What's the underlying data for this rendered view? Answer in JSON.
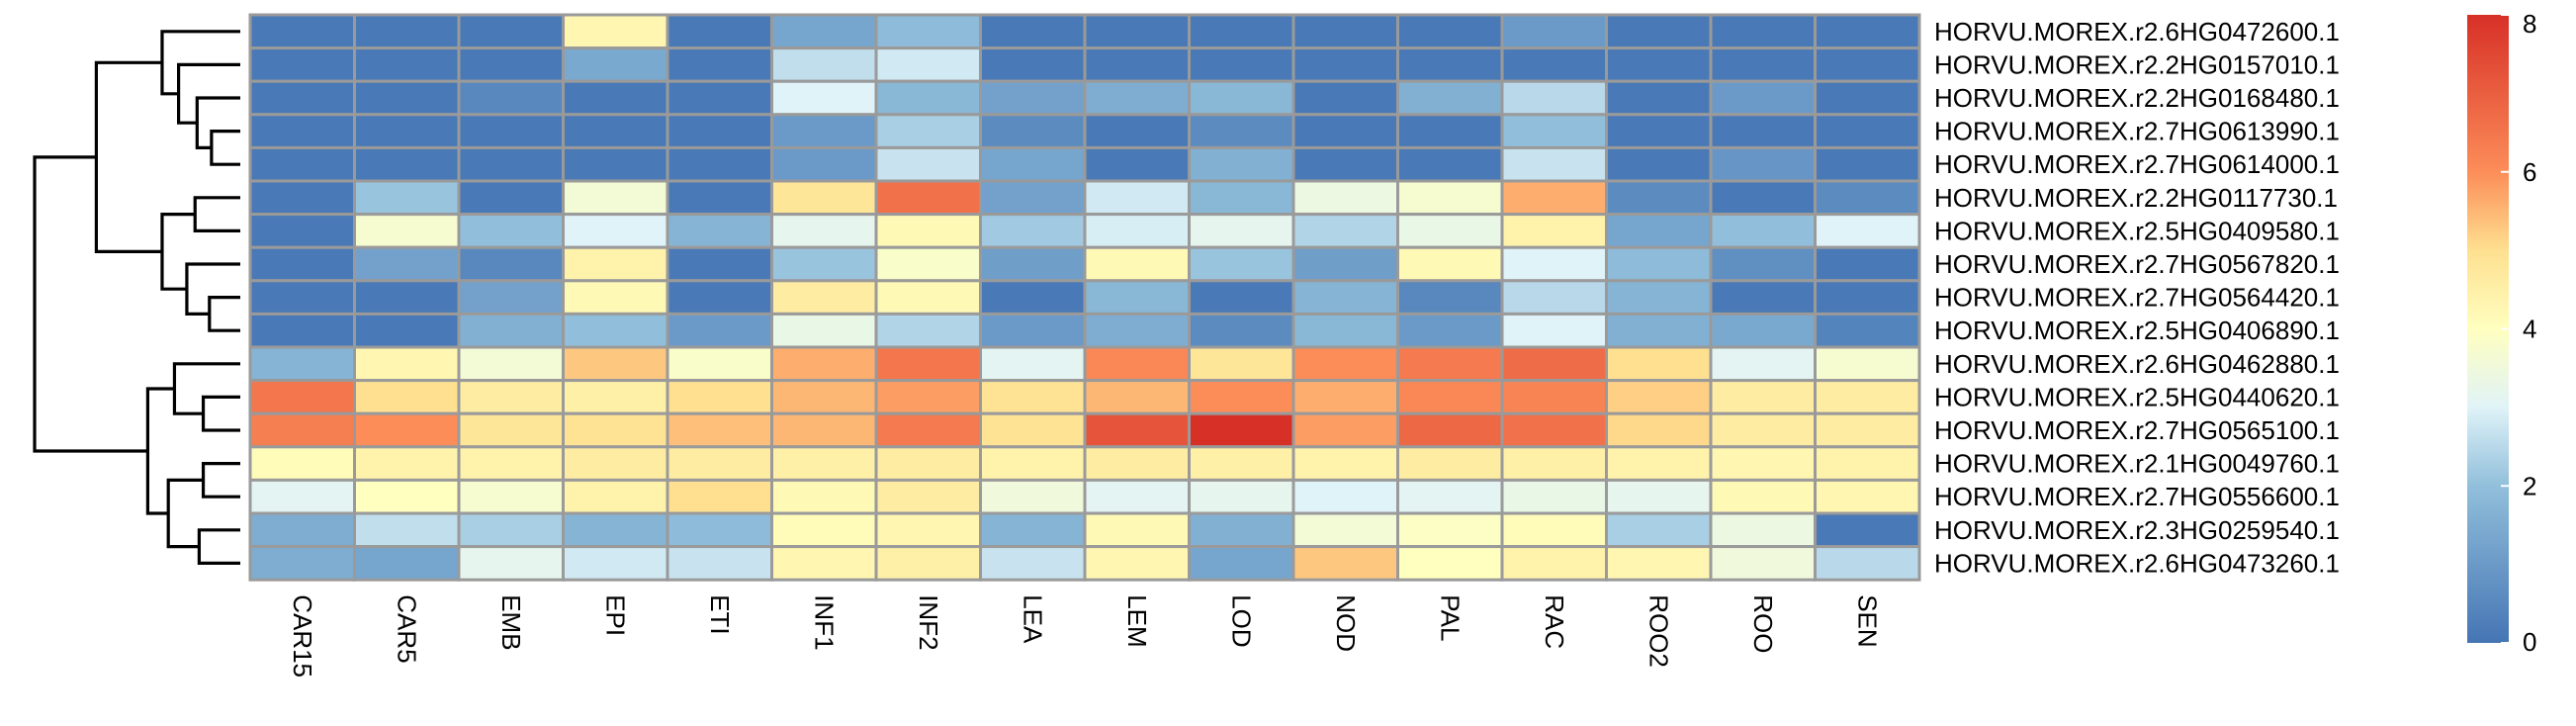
{
  "chart_data": {
    "type": "heatmap",
    "columns": [
      "CAR15",
      "CAR5",
      "EMB",
      "EPI",
      "ETI",
      "INF1",
      "INF2",
      "LEA",
      "LEM",
      "LOD",
      "NOD",
      "PAL",
      "RAC",
      "ROO2",
      "ROO",
      "SEN"
    ],
    "rows": [
      "HORVU.MOREX.r2.6HG0472600.1",
      "HORVU.MOREX.r2.2HG0157010.1",
      "HORVU.MOREX.r2.2HG0168480.1",
      "HORVU.MOREX.r2.7HG0613990.1",
      "HORVU.MOREX.r2.7HG0614000.1",
      "HORVU.MOREX.r2.2HG0117730.1",
      "HORVU.MOREX.r2.5HG0409580.1",
      "HORVU.MOREX.r2.7HG0567820.1",
      "HORVU.MOREX.r2.7HG0564420.1",
      "HORVU.MOREX.r2.5HG0406890.1",
      "HORVU.MOREX.r2.6HG0462880.1",
      "HORVU.MOREX.r2.5HG0440620.1",
      "HORVU.MOREX.r2.7HG0565100.1",
      "HORVU.MOREX.r2.1HG0049760.1",
      "HORVU.MOREX.r2.7HG0556600.1",
      "HORVU.MOREX.r2.3HG0259540.1",
      "HORVU.MOREX.r2.6HG0473260.1"
    ],
    "values": [
      [
        0.1,
        0.1,
        0.1,
        4.3,
        0.1,
        1.3,
        1.9,
        0.1,
        0.1,
        0.1,
        0.1,
        0.1,
        1.0,
        0.1,
        0.1,
        0.1
      ],
      [
        0.1,
        0.1,
        0.1,
        1.4,
        0.1,
        2.6,
        2.8,
        0.1,
        0.1,
        0.1,
        0.1,
        0.1,
        0.1,
        0.1,
        0.1,
        0.1
      ],
      [
        0.1,
        0.1,
        0.5,
        0.1,
        0.1,
        3.0,
        1.8,
        1.2,
        1.5,
        1.8,
        0.1,
        1.6,
        2.5,
        0.1,
        1.0,
        0.1
      ],
      [
        0.1,
        0.1,
        0.1,
        0.1,
        0.1,
        1.0,
        2.3,
        0.6,
        0.1,
        0.6,
        0.1,
        0.1,
        2.0,
        0.1,
        0.1,
        0.1
      ],
      [
        0.1,
        0.1,
        0.1,
        0.1,
        0.1,
        1.0,
        2.7,
        1.3,
        0.1,
        1.6,
        0.1,
        0.1,
        2.7,
        0.1,
        0.9,
        0.1
      ],
      [
        0.1,
        2.1,
        0.1,
        3.6,
        0.1,
        4.8,
        6.6,
        1.2,
        2.8,
        1.8,
        3.4,
        3.7,
        5.6,
        0.6,
        0.1,
        0.6
      ],
      [
        0.1,
        3.7,
        2.0,
        3.0,
        1.7,
        3.2,
        4.2,
        2.2,
        2.9,
        3.2,
        2.4,
        3.3,
        4.4,
        1.3,
        2.0,
        3.0
      ],
      [
        0.1,
        1.2,
        0.5,
        4.4,
        0.1,
        2.1,
        3.8,
        1.1,
        4.2,
        2.1,
        1.1,
        4.2,
        3.0,
        1.9,
        0.7,
        0.1
      ],
      [
        0.1,
        0.1,
        1.2,
        4.2,
        0.1,
        4.6,
        4.2,
        0.1,
        1.8,
        0.1,
        1.7,
        0.5,
        2.5,
        1.7,
        0.1,
        0.1
      ],
      [
        0.1,
        0.1,
        1.6,
        2.0,
        1.0,
        3.3,
        2.4,
        1.0,
        1.5,
        0.6,
        1.8,
        1.0,
        3.0,
        1.6,
        1.4,
        0.4
      ],
      [
        1.7,
        4.3,
        3.6,
        5.3,
        3.8,
        5.6,
        6.5,
        3.1,
        6.1,
        4.8,
        6.0,
        6.4,
        6.7,
        5.0,
        3.1,
        3.7
      ],
      [
        6.5,
        5.0,
        4.6,
        4.5,
        5.0,
        5.5,
        5.8,
        4.9,
        5.5,
        6.0,
        5.6,
        6.1,
        6.2,
        5.2,
        4.6,
        4.6
      ],
      [
        6.3,
        6.0,
        4.8,
        4.9,
        5.4,
        5.5,
        6.4,
        4.9,
        7.2,
        8.0,
        5.8,
        6.8,
        6.6,
        5.1,
        4.6,
        4.6
      ],
      [
        4.1,
        4.4,
        4.4,
        4.6,
        4.6,
        4.5,
        4.6,
        4.4,
        4.6,
        4.5,
        4.4,
        4.6,
        4.5,
        4.4,
        4.3,
        4.4
      ],
      [
        3.1,
        4.0,
        3.7,
        4.4,
        5.0,
        4.2,
        4.6,
        3.5,
        3.1,
        3.2,
        3.0,
        3.1,
        3.3,
        3.2,
        4.2,
        4.3
      ],
      [
        1.5,
        2.6,
        2.3,
        1.7,
        1.9,
        4.1,
        4.3,
        1.7,
        4.2,
        1.6,
        3.6,
        3.9,
        4.1,
        2.3,
        3.4,
        0.1
      ],
      [
        1.5,
        1.3,
        3.2,
        2.8,
        2.7,
        4.3,
        4.5,
        2.7,
        4.3,
        1.3,
        5.3,
        4.0,
        4.4,
        4.3,
        3.5,
        2.5
      ]
    ],
    "legend": {
      "min": 0,
      "max": 8,
      "ticks": [
        0,
        2,
        4,
        6,
        8
      ]
    },
    "row_dendrogram": true,
    "colors": {
      "low": "#4575b4",
      "mid": "#ffffbf",
      "high": "#d73027",
      "cell_border": "#9a9a9a"
    }
  }
}
